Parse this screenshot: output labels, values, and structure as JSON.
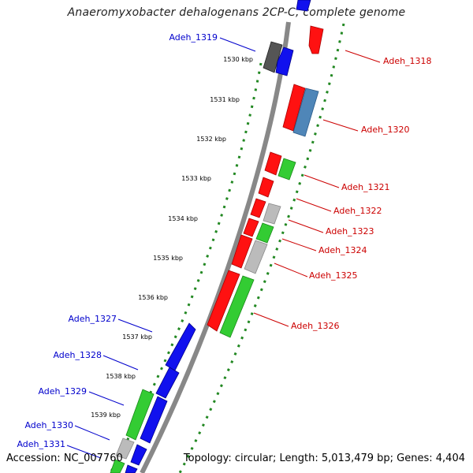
{
  "title": "Anaeromyxobacter dehalogenans 2CP-C, complete genome",
  "footer": {
    "accession_label": "Accession: NC_007760",
    "summary": "Topology: circular; Length: 5,013,479 bp; Genes: 4,404"
  },
  "ticks": [
    "1530 kbp",
    "1531 kbp",
    "1532 kbp",
    "1533 kbp",
    "1534 kbp",
    "1535 kbp",
    "1536 kbp",
    "1537 kbp",
    "1538 kbp",
    "1539 kbp"
  ],
  "genes": {
    "right": [
      "Adeh_1318",
      "Adeh_1320",
      "Adeh_1321",
      "Adeh_1322",
      "Adeh_1323",
      "Adeh_1324",
      "Adeh_1325",
      "Adeh_1326"
    ],
    "left": [
      "Adeh_1319",
      "Adeh_1327",
      "Adeh_1328",
      "Adeh_1329",
      "Adeh_1330",
      "Adeh_1331"
    ]
  },
  "colors": {
    "forward_label": "#0000cc",
    "reverse_label": "#cc0000",
    "red": "#ff1111",
    "blue": "#1111ee",
    "green": "#33cc33",
    "gray": "#bbbbbb",
    "darkgray": "#555555",
    "steel": "#4f86b8",
    "tick": "#228822"
  }
}
